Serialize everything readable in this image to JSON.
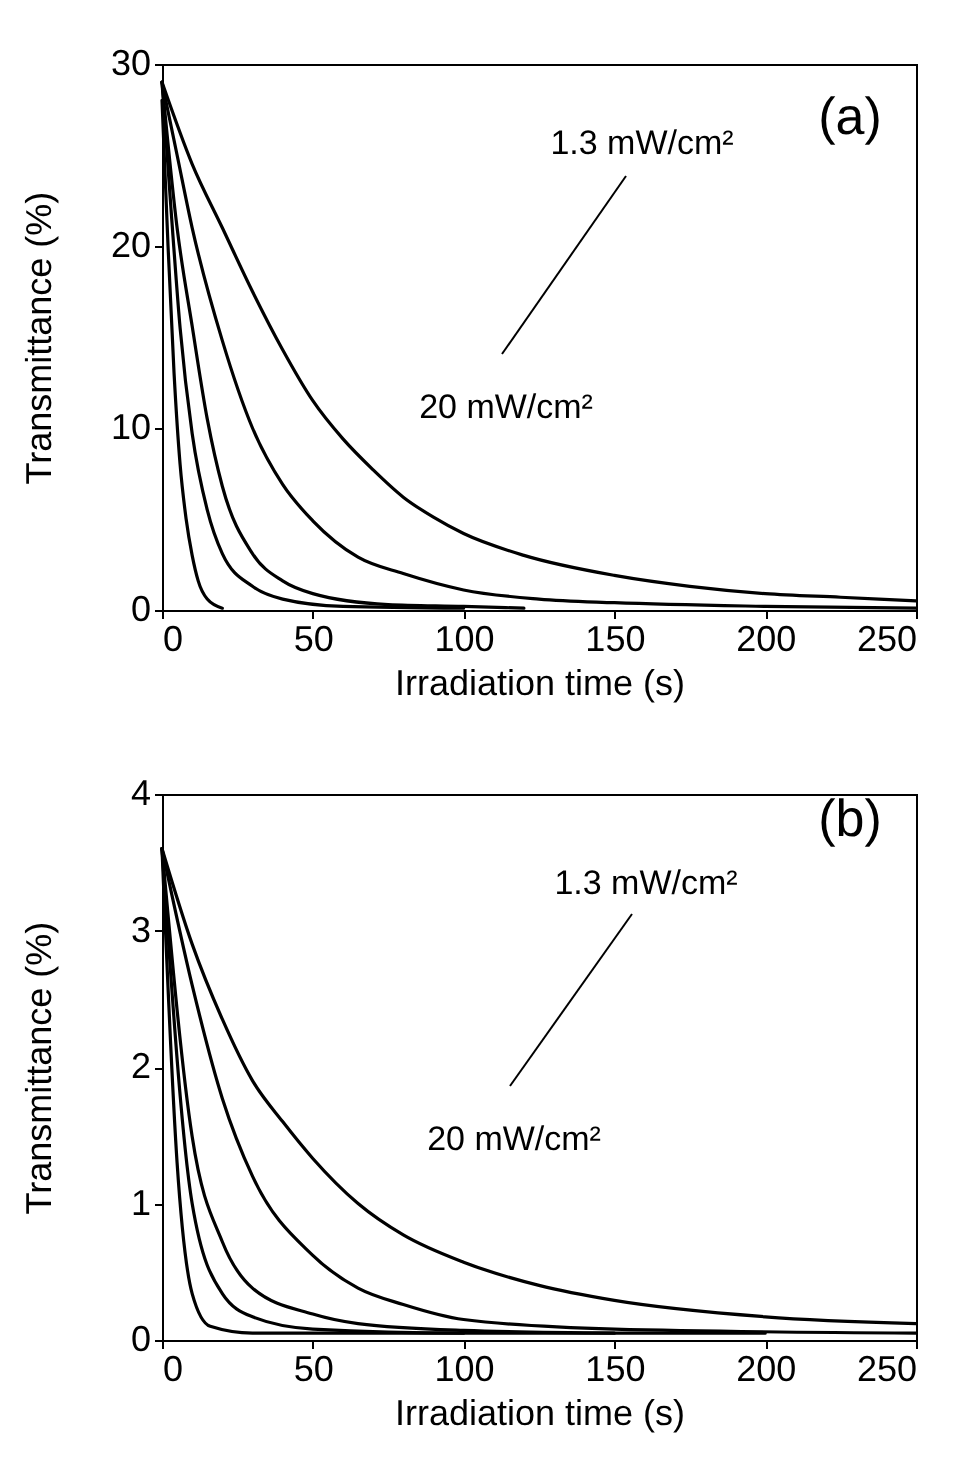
{
  "chart_data": [
    {
      "type": "line",
      "xlabel": "Irradiation time (s)",
      "ylabel": "Transmittance (%)",
      "annotations": [
        "(a)",
        "1.3 mW/cm²",
        "20 mW/cm²"
      ],
      "xlim": [
        0,
        250
      ],
      "xticks": [
        0,
        50,
        100,
        150,
        200,
        250
      ],
      "ylim": [
        0,
        30
      ],
      "yticks": [
        0,
        10,
        20,
        30
      ],
      "grid": false,
      "legend": false,
      "line_style": "solid",
      "marker": "none",
      "series": [
        {
          "color": "#000000",
          "x": [
            0,
            10,
            20,
            30,
            40,
            50,
            60,
            70,
            80,
            90,
            100,
            120,
            150,
            175,
            200,
            225,
            250
          ],
          "values": [
            29,
            24.5,
            21,
            17.5,
            14.3,
            11.5,
            9.4,
            7.7,
            6.2,
            5.1,
            4.2,
            3.0,
            1.9,
            1.3,
            0.9,
            0.7,
            0.5
          ]
        },
        {
          "color": "#000000",
          "x": [
            0,
            5,
            10,
            20,
            30,
            40,
            50,
            65,
            80,
            100,
            125,
            150,
            200,
            250
          ],
          "values": [
            29,
            25,
            21,
            14.8,
            10,
            6.9,
            4.9,
            2.9,
            2.0,
            1.1,
            0.6,
            0.4,
            0.2,
            0.1
          ]
        },
        {
          "color": "#000000",
          "x": [
            0,
            5,
            10,
            15,
            20,
            30,
            40,
            50,
            75,
            100,
            120
          ],
          "values": [
            29,
            21,
            15.6,
            10.5,
            6.8,
            3.1,
            1.6,
            0.9,
            0.3,
            0.2,
            0.1
          ]
        },
        {
          "color": "#000000",
          "x": [
            0,
            3,
            6,
            10,
            15,
            20,
            30,
            40,
            60,
            100
          ],
          "values": [
            29,
            22,
            15.5,
            9.7,
            5.5,
            3.1,
            1.3,
            0.6,
            0.2,
            0.1
          ]
        },
        {
          "color": "#000000",
          "x": [
            0,
            2,
            4,
            6,
            8,
            10,
            12,
            15,
            20
          ],
          "values": [
            28,
            20,
            13,
            8,
            5,
            3,
            1.6,
            0.6,
            0.1
          ]
        }
      ]
    },
    {
      "type": "line",
      "xlabel": "Irradiation time (s)",
      "ylabel": "Transmittance (%)",
      "annotations": [
        "(b)",
        "1.3 mW/cm²",
        "20 mW/cm²"
      ],
      "xlim": [
        0,
        250
      ],
      "xticks": [
        0,
        50,
        100,
        150,
        200,
        250
      ],
      "ylim": [
        0,
        4
      ],
      "yticks": [
        0,
        1,
        2,
        3,
        4
      ],
      "grid": false,
      "legend": false,
      "line_style": "solid",
      "marker": "none",
      "series": [
        {
          "color": "#000000",
          "x": [
            0,
            10,
            20,
            30,
            40,
            50,
            65,
            80,
            100,
            125,
            150,
            200,
            250
          ],
          "values": [
            3.6,
            2.9,
            2.35,
            1.9,
            1.6,
            1.33,
            1.0,
            0.77,
            0.57,
            0.4,
            0.29,
            0.17,
            0.12
          ]
        },
        {
          "color": "#000000",
          "x": [
            0,
            10,
            20,
            30,
            50,
            65,
            80,
            100,
            150,
            250
          ],
          "values": [
            3.6,
            2.6,
            1.77,
            1.2,
            0.62,
            0.38,
            0.26,
            0.15,
            0.08,
            0.05
          ]
        },
        {
          "color": "#000000",
          "x": [
            0,
            10,
            20,
            30,
            50,
            65,
            100,
            150
          ],
          "values": [
            3.6,
            1.49,
            0.72,
            0.38,
            0.19,
            0.12,
            0.07,
            0.05
          ]
        },
        {
          "color": "#000000",
          "x": [
            0,
            10,
            20,
            30,
            50,
            100,
            200
          ],
          "values": [
            3.6,
            1.0,
            0.34,
            0.17,
            0.08,
            0.05,
            0.05
          ]
        },
        {
          "color": "#000000",
          "x": [
            0,
            5,
            10,
            16,
            30,
            100
          ],
          "values": [
            3.6,
            1.3,
            0.34,
            0.1,
            0.05,
            0.05
          ]
        }
      ]
    }
  ]
}
